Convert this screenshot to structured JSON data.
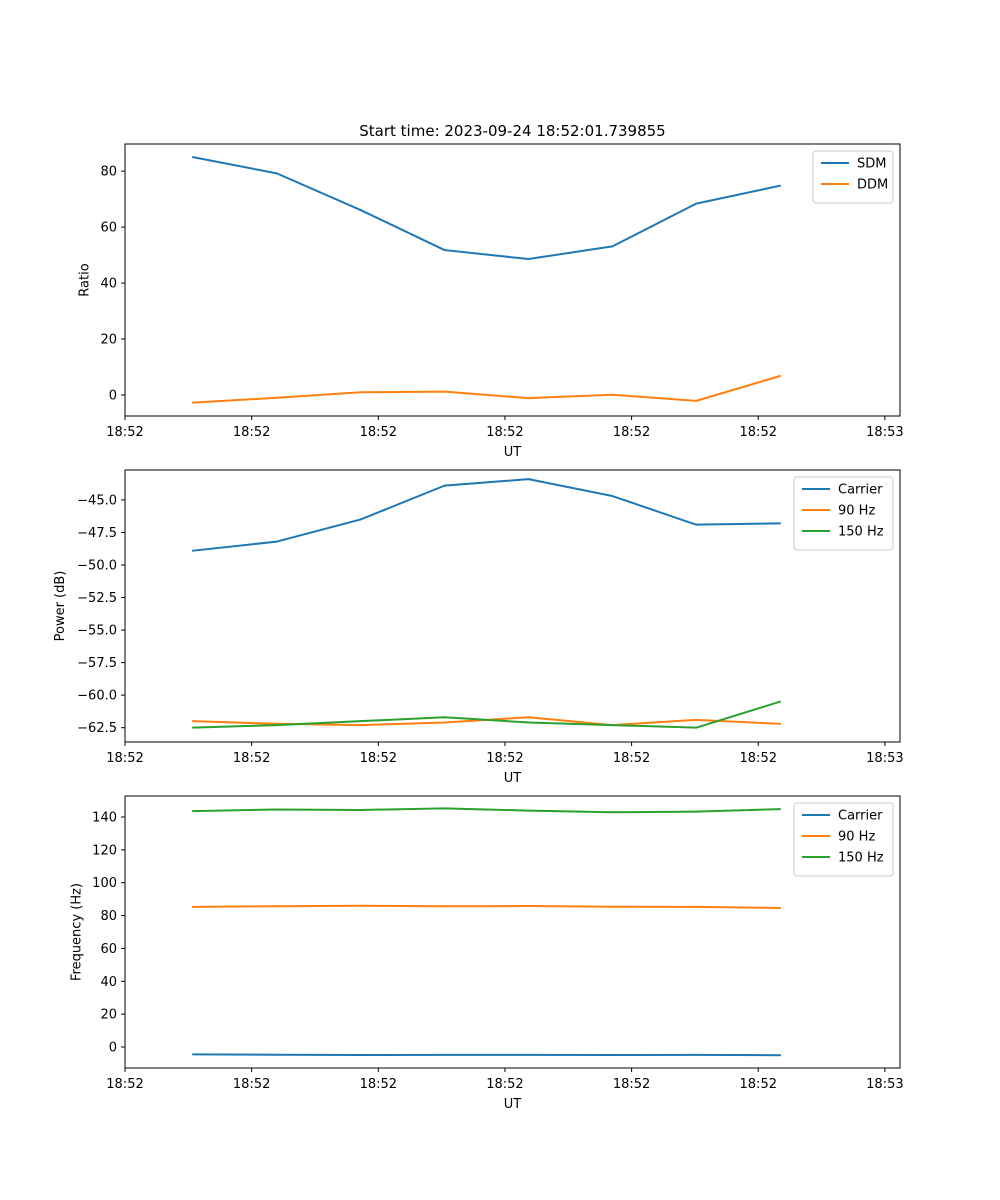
{
  "title": "Start time: 2023-09-24 18:52:01.739855",
  "colors": {
    "blue": "#1f77b4",
    "orange": "#ff7f0e",
    "green": "#2ca02c"
  },
  "chart_data": [
    {
      "type": "line",
      "xlabel": "UT",
      "ylabel": "Ratio",
      "x": [
        1,
        2,
        3,
        4,
        5,
        6,
        7,
        8
      ],
      "xlim": [
        0.19,
        9.43
      ],
      "ylim": [
        -7.5,
        89.7
      ],
      "xticks": [
        0.19,
        1.7,
        3.21,
        4.72,
        6.23,
        7.74,
        9.25
      ],
      "xtick_labels": [
        "18:52",
        "18:52",
        "18:52",
        "18:52",
        "18:52",
        "18:52",
        "18:53"
      ],
      "yticks": [
        0,
        20,
        40,
        60,
        80
      ],
      "ytick_labels": [
        "0",
        "20",
        "40",
        "60",
        "80"
      ],
      "legend": "top-right",
      "series": [
        {
          "name": "SDM",
          "color": "#1f77b4",
          "values": [
            85.0,
            79.2,
            66.1,
            51.8,
            48.6,
            53.1,
            68.4,
            74.8
          ]
        },
        {
          "name": "DDM",
          "color": "#ff7f0e",
          "values": [
            -2.7,
            -1.0,
            1.0,
            1.2,
            -1.1,
            0.1,
            -2.1,
            6.8
          ]
        }
      ]
    },
    {
      "type": "line",
      "xlabel": "UT",
      "ylabel": "Power (dB)",
      "x": [
        1,
        2,
        3,
        4,
        5,
        6,
        7,
        8
      ],
      "xlim": [
        0.19,
        9.43
      ],
      "ylim": [
        -63.6,
        -42.7
      ],
      "xticks": [
        0.19,
        1.7,
        3.21,
        4.72,
        6.23,
        7.74,
        9.25
      ],
      "xtick_labels": [
        "18:52",
        "18:52",
        "18:52",
        "18:52",
        "18:52",
        "18:52",
        "18:53"
      ],
      "yticks": [
        -62.5,
        -60.0,
        -57.5,
        -55.0,
        -52.5,
        -50.0,
        -47.5,
        -45.0
      ],
      "ytick_labels": [
        "−62.5",
        "−60.0",
        "−57.5",
        "−55.0",
        "−52.5",
        "−50.0",
        "−47.5",
        "−45.0"
      ],
      "legend": "top-right",
      "series": [
        {
          "name": "Carrier",
          "color": "#1f77b4",
          "values": [
            -48.9,
            -48.2,
            -46.5,
            -43.9,
            -43.4,
            -44.7,
            -46.9,
            -46.8
          ]
        },
        {
          "name": "90 Hz",
          "color": "#ff7f0e",
          "values": [
            -62.0,
            -62.2,
            -62.3,
            -62.1,
            -61.7,
            -62.3,
            -61.9,
            -62.2
          ]
        },
        {
          "name": "150 Hz",
          "color": "#2ca02c",
          "values": [
            -62.5,
            -62.3,
            -62.0,
            -61.7,
            -62.1,
            -62.3,
            -62.5,
            -60.5
          ]
        }
      ]
    },
    {
      "type": "line",
      "xlabel": "UT",
      "ylabel": "Frequency (Hz)",
      "x": [
        1,
        2,
        3,
        4,
        5,
        6,
        7,
        8
      ],
      "xlim": [
        0.19,
        9.43
      ],
      "ylim": [
        -12.8,
        152.8
      ],
      "xticks": [
        0.19,
        1.7,
        3.21,
        4.72,
        6.23,
        7.74,
        9.25
      ],
      "xtick_labels": [
        "18:52",
        "18:52",
        "18:52",
        "18:52",
        "18:52",
        "18:52",
        "18:53"
      ],
      "yticks": [
        0,
        20,
        40,
        60,
        80,
        100,
        120,
        140
      ],
      "ytick_labels": [
        "0",
        "20",
        "40",
        "60",
        "80",
        "100",
        "120",
        "140"
      ],
      "legend": "top-right",
      "series": [
        {
          "name": "Carrier",
          "color": "#1f77b4",
          "values": [
            -4.5,
            -4.7,
            -4.9,
            -4.8,
            -4.8,
            -4.9,
            -4.8,
            -5.0
          ]
        },
        {
          "name": "90 Hz",
          "color": "#ff7f0e",
          "values": [
            85.3,
            85.7,
            86.0,
            85.7,
            85.8,
            85.4,
            85.3,
            84.6
          ]
        },
        {
          "name": "150 Hz",
          "color": "#2ca02c",
          "values": [
            143.6,
            144.6,
            144.3,
            145.3,
            143.9,
            142.9,
            143.3,
            144.8
          ]
        }
      ]
    }
  ]
}
